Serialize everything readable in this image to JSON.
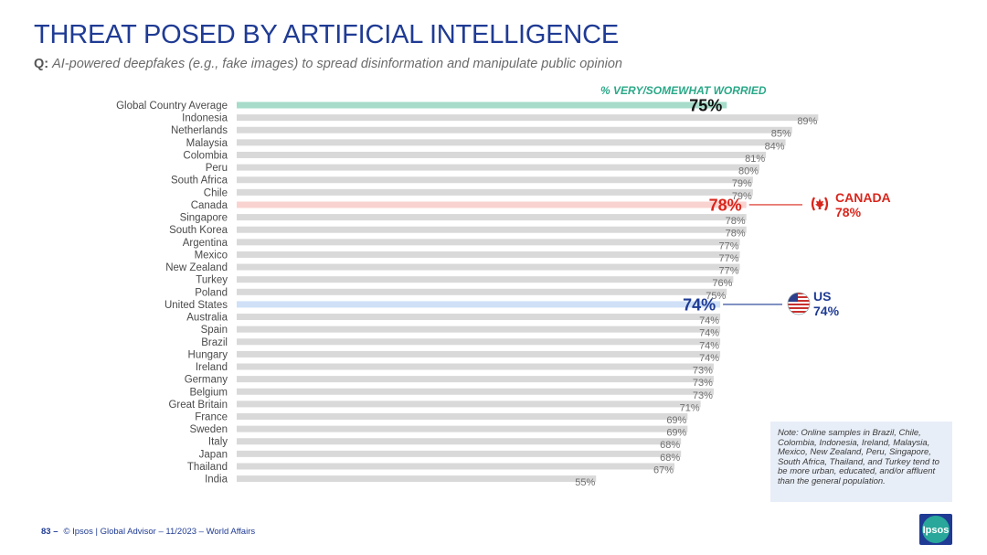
{
  "header": {
    "title": "THREAT POSED BY ARTIFICIAL INTELLIGENCE",
    "question_prefix": "Q:",
    "question": "AI-powered deepfakes (e.g., fake images) to spread disinformation and manipulate public opinion"
  },
  "legend": {
    "label": "% VERY/SOMEWHAT WORRIED"
  },
  "callouts": {
    "canada": {
      "name": "CANADA",
      "value": "78%"
    },
    "us": {
      "name": "US",
      "value": "74%"
    }
  },
  "note": "Note: Online samples in Brazil, Chile, Colombia, Indonesia, Ireland, Malaysia, Mexico, New Zealand, Peru, Singapore, South Africa, Thailand, and Turkey tend to be more urban, educated, and/or affluent than the general population.",
  "footer": {
    "page": "83 –",
    "text": "© Ipsos | Global Advisor – 11/2023 – World Affairs"
  },
  "logo": {
    "text": "Ipsos"
  },
  "colors": {
    "bar": "#d9d9d9",
    "global": "#a6dcc9",
    "canada": "#f9d3d0",
    "us": "#cfe0f7",
    "title": "#1f3b94",
    "canada_text": "#d9261c",
    "us_text": "#1f3b94"
  },
  "chart_data": {
    "type": "bar",
    "orientation": "horizontal",
    "categories": [
      "Global Country Average",
      "Indonesia",
      "Netherlands",
      "Malaysia",
      "Colombia",
      "Peru",
      "South Africa",
      "Chile",
      "Canada",
      "Singapore",
      "South Korea",
      "Argentina",
      "Mexico",
      "New Zealand",
      "Turkey",
      "Poland",
      "United States",
      "Australia",
      "Spain",
      "Brazil",
      "Hungary",
      "Ireland",
      "Germany",
      "Belgium",
      "Great Britain",
      "France",
      "Sweden",
      "Italy",
      "Japan",
      "Thailand",
      "India"
    ],
    "values": [
      75,
      89,
      85,
      84,
      81,
      80,
      79,
      79,
      78,
      78,
      78,
      77,
      77,
      77,
      76,
      75,
      74,
      74,
      74,
      74,
      74,
      73,
      73,
      73,
      71,
      69,
      69,
      68,
      68,
      67,
      55
    ],
    "value_labels": [
      "75%",
      "89%",
      "85%",
      "84%",
      "81%",
      "80%",
      "79%",
      "79%",
      "78%",
      "78%",
      "78%",
      "77%",
      "77%",
      "77%",
      "76%",
      "75%",
      "74%",
      "74%",
      "74%",
      "74%",
      "74%",
      "73%",
      "73%",
      "73%",
      "71%",
      "69%",
      "69%",
      "68%",
      "68%",
      "67%",
      "55%"
    ],
    "highlights": {
      "Global Country Average": "global",
      "Canada": "canada",
      "United States": "us"
    },
    "xlim": [
      0,
      100
    ]
  }
}
